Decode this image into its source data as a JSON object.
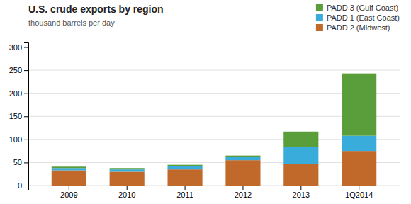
{
  "chart_data": {
    "type": "bar",
    "stacked": true,
    "title": "U.S. crude exports by region",
    "subtitle": "thousand barrels per day",
    "categories": [
      "2009",
      "2010",
      "2011",
      "2012",
      "2013",
      "1Q2014"
    ],
    "series": [
      {
        "name": "PADD 2 (Midwest)",
        "color": "#c0692a",
        "values": [
          33,
          30,
          35,
          55,
          47,
          75
        ]
      },
      {
        "name": "PADD 1 (East Coast)",
        "color": "#3aacdc",
        "values": [
          5,
          5,
          7,
          7,
          37,
          33
        ]
      },
      {
        "name": "PADD 3 (Gulf Coast)",
        "color": "#5a9e3c",
        "values": [
          3,
          3,
          3,
          3,
          33,
          135
        ]
      }
    ],
    "ylim": [
      0,
      310
    ],
    "yticks": [
      0,
      50,
      100,
      150,
      200,
      250,
      300
    ],
    "grid": true,
    "legend": "upper right"
  }
}
